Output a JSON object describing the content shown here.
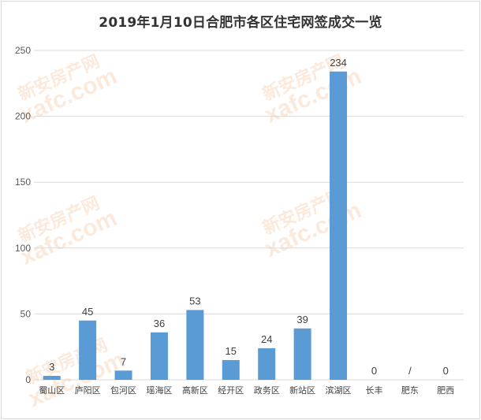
{
  "chart_data": {
    "type": "bar",
    "title": "2019年1月10日合肥市各区住宅网签成交一览",
    "xlabel": "",
    "ylabel": "",
    "ylim": [
      0,
      250
    ],
    "yticks": [
      0,
      50,
      100,
      150,
      200,
      250
    ],
    "grid": true,
    "legend": "none",
    "bar_color": "#5b9bd5",
    "categories": [
      "蜀山区",
      "庐阳区",
      "包河区",
      "瑶海区",
      "高新区",
      "经开区",
      "政务区",
      "新站区",
      "滨湖区",
      "长丰",
      "肥东",
      "肥西"
    ],
    "values": [
      3,
      45,
      7,
      36,
      53,
      15,
      24,
      39,
      234,
      0,
      0,
      0
    ],
    "data_labels": [
      "3",
      "45",
      "7",
      "36",
      "53",
      "15",
      "24",
      "39",
      "234",
      "0",
      "/",
      "0"
    ]
  },
  "watermark": {
    "brand": "新安房产网",
    "domain": "xafc.com",
    "color": "#f4b183"
  }
}
